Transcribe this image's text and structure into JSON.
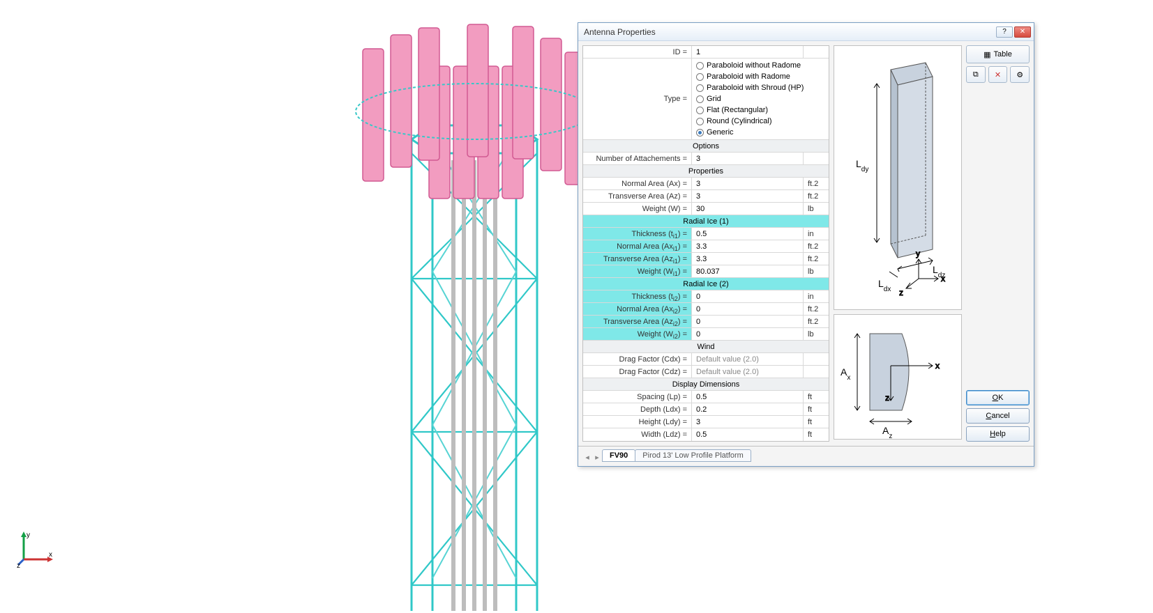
{
  "viewport": {
    "axis_labels": {
      "x": "x",
      "y": "y",
      "z": "z"
    },
    "tower": {
      "legs_color": "#4cd0d0",
      "brace_color": "#4cd0d0",
      "coax_color": "#b8b8b8",
      "antenna_color": "#e87aa8",
      "antenna_face": "#f29cc0",
      "background": "#ffffff"
    }
  },
  "dialog": {
    "title": "Antenna Properties",
    "toolbar": {
      "table_label": "Table"
    },
    "actions": {
      "ok": "OK",
      "cancel": "Cancel",
      "help": "Help"
    },
    "tabs": [
      {
        "label": "FV90",
        "active": true
      },
      {
        "label": "Pirod 13' Low Profile Platform",
        "active": false
      }
    ],
    "grid": {
      "id_label": "ID =",
      "id_value": "1",
      "type_label": "Type =",
      "type_options": [
        {
          "label": "Paraboloid without Radome",
          "selected": false
        },
        {
          "label": "Paraboloid with Radome",
          "selected": false
        },
        {
          "label": "Paraboloid with Shroud (HP)",
          "selected": false
        },
        {
          "label": "Grid",
          "selected": false
        },
        {
          "label": "Flat (Rectangular)",
          "selected": false
        },
        {
          "label": "Round (Cylindrical)",
          "selected": false
        },
        {
          "label": "Generic",
          "selected": true
        }
      ],
      "sections": {
        "options": "Options",
        "num_attach_label": "Number of Attachements =",
        "num_attach_value": "3",
        "properties": "Properties",
        "normal_area_label": "Normal Area (Ax) =",
        "normal_area_value": "3",
        "normal_area_unit": "ft.2",
        "trans_area_label": "Transverse Area (Az) =",
        "trans_area_value": "3",
        "trans_area_unit": "ft.2",
        "weight_label": "Weight (W) =",
        "weight_value": "30",
        "weight_unit": "lb",
        "ice1": "Radial Ice (1)",
        "ice1_thick_label": "Thickness (t_i1) =",
        "ice1_thick_value": "0.5",
        "ice1_thick_unit": "in",
        "ice1_na_label": "Normal Area (Ax_i1) =",
        "ice1_na_value": "3.3",
        "ice1_na_unit": "ft.2",
        "ice1_ta_label": "Transverse Area (Az_i1) =",
        "ice1_ta_value": "3.3",
        "ice1_ta_unit": "ft.2",
        "ice1_w_label": "Weight (W_i1) =",
        "ice1_w_value": "80.037",
        "ice1_w_unit": "lb",
        "ice2": "Radial Ice (2)",
        "ice2_thick_label": "Thickness (t_i2) =",
        "ice2_thick_value": "0",
        "ice2_thick_unit": "in",
        "ice2_na_label": "Normal Area (Ax_i2) =",
        "ice2_na_value": "0",
        "ice2_na_unit": "ft.2",
        "ice2_ta_label": "Transverse Area (Az_i2) =",
        "ice2_ta_value": "0",
        "ice2_ta_unit": "ft.2",
        "ice2_w_label": "Weight (W_i2) =",
        "ice2_w_value": "0",
        "ice2_w_unit": "lb",
        "wind": "Wind",
        "cdx_label": "Drag Factor (Cdx) =",
        "cdx_value": "Default value (2.0)",
        "cdz_label": "Drag Factor (Cdz) =",
        "cdz_value": "Default value (2.0)",
        "disp": "Display Dimensions",
        "spacing_label": "Spacing (Lp) =",
        "spacing_value": "0.5",
        "spacing_unit": "ft",
        "depth_label": "Depth (Ldx) =",
        "depth_value": "0.2",
        "depth_unit": "ft",
        "height_label": "Height (Ldy) =",
        "height_value": "3",
        "height_unit": "ft",
        "width_label": "Width (Ldz) =",
        "width_value": "0.5",
        "width_unit": "ft"
      }
    },
    "diagram3d": {
      "Ldx": "L_dx",
      "Ldy": "L_dy",
      "Ldz": "L_dz",
      "x": "x",
      "y": "y",
      "z": "z"
    },
    "diagram2d": {
      "Ax": "A_x",
      "Az": "A_z",
      "x": "x",
      "z": "z"
    }
  }
}
